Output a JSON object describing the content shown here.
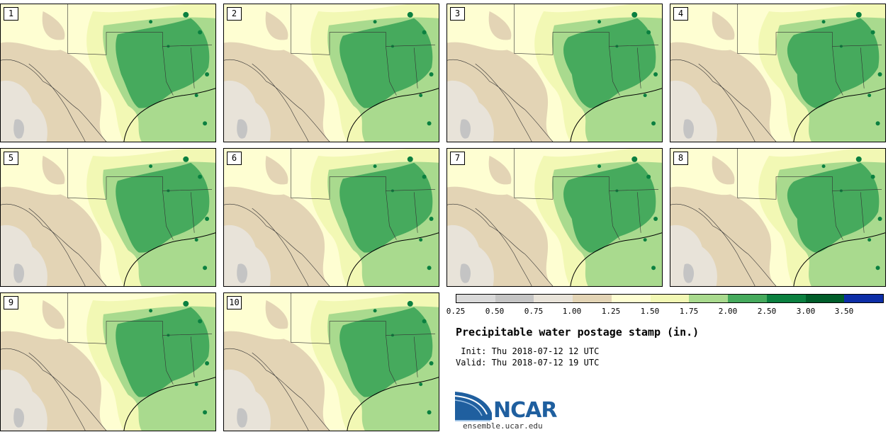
{
  "stamps": [
    {
      "label": "1"
    },
    {
      "label": "2"
    },
    {
      "label": "3"
    },
    {
      "label": "4"
    },
    {
      "label": "5"
    },
    {
      "label": "6"
    },
    {
      "label": "7"
    },
    {
      "label": "8"
    },
    {
      "label": "9"
    },
    {
      "label": "10"
    }
  ],
  "colorbar": {
    "colors": [
      "#d9d9d9",
      "#c4c4c4",
      "#e8e3d9",
      "#e3d4b5",
      "#fefed2",
      "#f2f8b4",
      "#a9da8e",
      "#46aa5d",
      "#0b8040",
      "#005d2a",
      "#0d2ea7"
    ],
    "tick_labels": [
      "0.25",
      "0.50",
      "0.75",
      "1.00",
      "1.25",
      "1.50",
      "1.75",
      "2.00",
      "2.50",
      "3.00",
      "3.50"
    ]
  },
  "title": "Precipitable water postage stamp (in.)",
  "init_line": " Init: Thu 2018-07-12 12 UTC",
  "valid_line": "Valid: Thu 2018-07-12 19 UTC",
  "logo": {
    "text": "NCAR",
    "brand_color": "#1f5f9f"
  },
  "website": "ensemble.ucar.edu"
}
